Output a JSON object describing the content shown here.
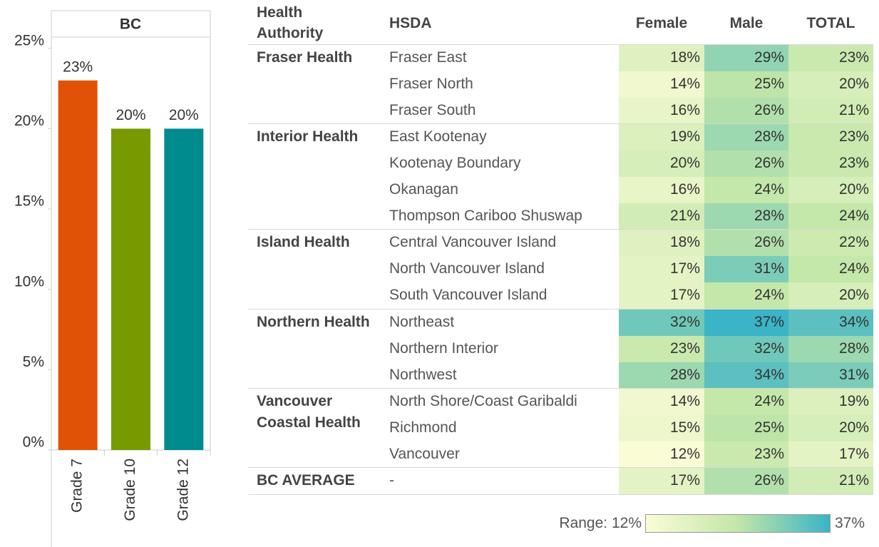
{
  "chart_data": {
    "type": "bar",
    "title": "BC",
    "categories": [
      "Grade 7",
      "Grade 10",
      "Grade 12"
    ],
    "values": [
      23,
      20,
      20
    ],
    "value_labels": [
      "23%",
      "20%",
      "20%"
    ],
    "colors": [
      "#e05206",
      "#779a00",
      "#008b8f"
    ],
    "ylim": [
      0,
      25.7
    ],
    "yticks": [
      {
        "value": 0,
        "label": "0%"
      },
      {
        "value": 5,
        "label": "5%"
      },
      {
        "value": 10,
        "label": "10%"
      },
      {
        "value": 15,
        "label": "15%"
      },
      {
        "value": 20,
        "label": "20%"
      },
      {
        "value": 25,
        "label": "25%"
      }
    ]
  },
  "table": {
    "headers": [
      "Health Authority",
      "HSDA",
      "Female",
      "Male",
      "TOTAL"
    ],
    "groups": [
      {
        "name": "Fraser Health",
        "rows": [
          {
            "hsda": "Fraser East",
            "values": [
              18,
              29,
              23
            ],
            "value_labels": [
              "18%",
              "29%",
              "23%"
            ]
          },
          {
            "hsda": "Fraser North",
            "values": [
              14,
              25,
              20
            ],
            "value_labels": [
              "14%",
              "25%",
              "20%"
            ]
          },
          {
            "hsda": "Fraser South",
            "values": [
              16,
              26,
              21
            ],
            "value_labels": [
              "16%",
              "26%",
              "21%"
            ]
          }
        ]
      },
      {
        "name": "Interior Health",
        "rows": [
          {
            "hsda": "East Kootenay",
            "values": [
              19,
              28,
              23
            ],
            "value_labels": [
              "19%",
              "28%",
              "23%"
            ]
          },
          {
            "hsda": "Kootenay Boundary",
            "values": [
              20,
              26,
              23
            ],
            "value_labels": [
              "20%",
              "26%",
              "23%"
            ]
          },
          {
            "hsda": "Okanagan",
            "values": [
              16,
              24,
              20
            ],
            "value_labels": [
              "16%",
              "24%",
              "20%"
            ]
          },
          {
            "hsda": "Thompson Cariboo Shuswap",
            "values": [
              21,
              28,
              24
            ],
            "value_labels": [
              "21%",
              "28%",
              "24%"
            ]
          }
        ]
      },
      {
        "name": "Island Health",
        "rows": [
          {
            "hsda": "Central Vancouver Island",
            "values": [
              18,
              26,
              22
            ],
            "value_labels": [
              "18%",
              "26%",
              "22%"
            ]
          },
          {
            "hsda": "North Vancouver Island",
            "values": [
              17,
              31,
              24
            ],
            "value_labels": [
              "17%",
              "31%",
              "24%"
            ]
          },
          {
            "hsda": "South Vancouver Island",
            "values": [
              17,
              24,
              20
            ],
            "value_labels": [
              "17%",
              "24%",
              "20%"
            ]
          }
        ]
      },
      {
        "name": "Northern Health",
        "rows": [
          {
            "hsda": "Northeast",
            "values": [
              32,
              37,
              34
            ],
            "value_labels": [
              "32%",
              "37%",
              "34%"
            ]
          },
          {
            "hsda": "Northern Interior",
            "values": [
              23,
              32,
              28
            ],
            "value_labels": [
              "23%",
              "32%",
              "28%"
            ]
          },
          {
            "hsda": "Northwest",
            "values": [
              28,
              34,
              31
            ],
            "value_labels": [
              "28%",
              "34%",
              "31%"
            ]
          }
        ]
      },
      {
        "name": "Vancouver Coastal Health",
        "rows": [
          {
            "hsda": "North Shore/Coast Garibaldi",
            "values": [
              14,
              24,
              19
            ],
            "value_labels": [
              "14%",
              "24%",
              "19%"
            ]
          },
          {
            "hsda": "Richmond",
            "values": [
              15,
              25,
              20
            ],
            "value_labels": [
              "15%",
              "25%",
              "20%"
            ]
          },
          {
            "hsda": "Vancouver",
            "values": [
              12,
              23,
              17
            ],
            "value_labels": [
              "12%",
              "23%",
              "17%"
            ]
          }
        ]
      }
    ],
    "footer": {
      "name": "BC AVERAGE",
      "hsda": "-",
      "values": [
        17,
        26,
        21
      ],
      "value_labels": [
        "17%",
        "26%",
        "21%"
      ]
    },
    "legend": {
      "label": "Range:",
      "min": 12,
      "max": 37,
      "min_label": "12%",
      "max_label": "37%",
      "colors": [
        "#fafcd6",
        "#c2e6a8",
        "#3ab4c6"
      ]
    }
  }
}
